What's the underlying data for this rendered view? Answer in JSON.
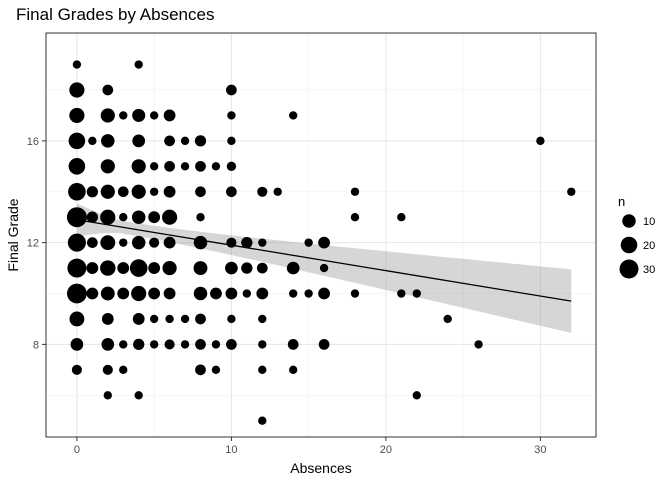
{
  "chart_data": {
    "type": "scatter",
    "title": "Final Grades by Absences",
    "xlabel": "Absences",
    "ylabel": "Final Grade",
    "xlim": [
      -2,
      33.6
    ],
    "ylim": [
      4.36,
      20.24
    ],
    "xticks": [
      0,
      10,
      20,
      30
    ],
    "yticks": [
      8,
      12,
      16
    ],
    "grid": true,
    "legend": {
      "title": "n",
      "position": "right",
      "entries": [
        10,
        20,
        30
      ]
    },
    "points": [
      {
        "x": 0,
        "y": 19,
        "n": 1
      },
      {
        "x": 4,
        "y": 19,
        "n": 1
      },
      {
        "x": 0,
        "y": 18,
        "n": 15
      },
      {
        "x": 2,
        "y": 18,
        "n": 4
      },
      {
        "x": 10,
        "y": 18,
        "n": 4
      },
      {
        "x": 0,
        "y": 17,
        "n": 15
      },
      {
        "x": 2,
        "y": 17,
        "n": 12
      },
      {
        "x": 3,
        "y": 17,
        "n": 1
      },
      {
        "x": 4,
        "y": 17,
        "n": 9
      },
      {
        "x": 5,
        "y": 17,
        "n": 1
      },
      {
        "x": 6,
        "y": 17,
        "n": 6
      },
      {
        "x": 10,
        "y": 17,
        "n": 1
      },
      {
        "x": 14,
        "y": 17,
        "n": 1
      },
      {
        "x": 0,
        "y": 16,
        "n": 20
      },
      {
        "x": 1,
        "y": 16,
        "n": 1
      },
      {
        "x": 2,
        "y": 16,
        "n": 10
      },
      {
        "x": 4,
        "y": 16,
        "n": 8
      },
      {
        "x": 6,
        "y": 16,
        "n": 4
      },
      {
        "x": 7,
        "y": 16,
        "n": 1
      },
      {
        "x": 8,
        "y": 16,
        "n": 5
      },
      {
        "x": 10,
        "y": 16,
        "n": 1
      },
      {
        "x": 30,
        "y": 16,
        "n": 1
      },
      {
        "x": 0,
        "y": 15,
        "n": 20
      },
      {
        "x": 2,
        "y": 15,
        "n": 12
      },
      {
        "x": 4,
        "y": 15,
        "n": 12
      },
      {
        "x": 5,
        "y": 15,
        "n": 1
      },
      {
        "x": 6,
        "y": 15,
        "n": 4
      },
      {
        "x": 7,
        "y": 15,
        "n": 1
      },
      {
        "x": 8,
        "y": 15,
        "n": 4
      },
      {
        "x": 9,
        "y": 15,
        "n": 1
      },
      {
        "x": 10,
        "y": 15,
        "n": 2
      },
      {
        "x": 0,
        "y": 14,
        "n": 24
      },
      {
        "x": 1,
        "y": 14,
        "n": 5
      },
      {
        "x": 2,
        "y": 14,
        "n": 12
      },
      {
        "x": 3,
        "y": 14,
        "n": 4
      },
      {
        "x": 4,
        "y": 14,
        "n": 12
      },
      {
        "x": 5,
        "y": 14,
        "n": 1
      },
      {
        "x": 6,
        "y": 14,
        "n": 6
      },
      {
        "x": 8,
        "y": 14,
        "n": 4
      },
      {
        "x": 10,
        "y": 14,
        "n": 4
      },
      {
        "x": 12,
        "y": 14,
        "n": 3
      },
      {
        "x": 13,
        "y": 14,
        "n": 1
      },
      {
        "x": 18,
        "y": 14,
        "n": 1
      },
      {
        "x": 32,
        "y": 14,
        "n": 1
      },
      {
        "x": 0,
        "y": 13,
        "n": 35
      },
      {
        "x": 1,
        "y": 13,
        "n": 5
      },
      {
        "x": 2,
        "y": 13,
        "n": 15
      },
      {
        "x": 3,
        "y": 13,
        "n": 1
      },
      {
        "x": 4,
        "y": 13,
        "n": 10
      },
      {
        "x": 5,
        "y": 13,
        "n": 6
      },
      {
        "x": 6,
        "y": 13,
        "n": 15
      },
      {
        "x": 8,
        "y": 13,
        "n": 1
      },
      {
        "x": 18,
        "y": 13,
        "n": 1
      },
      {
        "x": 21,
        "y": 13,
        "n": 1
      },
      {
        "x": 0,
        "y": 12,
        "n": 26
      },
      {
        "x": 1,
        "y": 12,
        "n": 4
      },
      {
        "x": 2,
        "y": 12,
        "n": 14
      },
      {
        "x": 3,
        "y": 12,
        "n": 1
      },
      {
        "x": 4,
        "y": 12,
        "n": 10
      },
      {
        "x": 5,
        "y": 12,
        "n": 3
      },
      {
        "x": 6,
        "y": 12,
        "n": 6
      },
      {
        "x": 8,
        "y": 12,
        "n": 10
      },
      {
        "x": 10,
        "y": 12,
        "n": 3
      },
      {
        "x": 11,
        "y": 12,
        "n": 5
      },
      {
        "x": 12,
        "y": 12,
        "n": 1
      },
      {
        "x": 15,
        "y": 12,
        "n": 1
      },
      {
        "x": 16,
        "y": 12,
        "n": 6
      },
      {
        "x": 0,
        "y": 11,
        "n": 30
      },
      {
        "x": 1,
        "y": 11,
        "n": 6
      },
      {
        "x": 2,
        "y": 11,
        "n": 16
      },
      {
        "x": 3,
        "y": 11,
        "n": 6
      },
      {
        "x": 4,
        "y": 11,
        "n": 24
      },
      {
        "x": 5,
        "y": 11,
        "n": 6
      },
      {
        "x": 6,
        "y": 11,
        "n": 12
      },
      {
        "x": 8,
        "y": 11,
        "n": 11
      },
      {
        "x": 10,
        "y": 11,
        "n": 8
      },
      {
        "x": 11,
        "y": 11,
        "n": 5
      },
      {
        "x": 12,
        "y": 11,
        "n": 4
      },
      {
        "x": 14,
        "y": 11,
        "n": 8
      },
      {
        "x": 16,
        "y": 11,
        "n": 1
      },
      {
        "x": 0,
        "y": 10,
        "n": 34
      },
      {
        "x": 1,
        "y": 10,
        "n": 6
      },
      {
        "x": 2,
        "y": 10,
        "n": 11
      },
      {
        "x": 3,
        "y": 10,
        "n": 6
      },
      {
        "x": 4,
        "y": 10,
        "n": 15
      },
      {
        "x": 5,
        "y": 10,
        "n": 6
      },
      {
        "x": 6,
        "y": 10,
        "n": 6
      },
      {
        "x": 8,
        "y": 10,
        "n": 10
      },
      {
        "x": 9,
        "y": 10,
        "n": 6
      },
      {
        "x": 10,
        "y": 10,
        "n": 6
      },
      {
        "x": 11,
        "y": 10,
        "n": 1
      },
      {
        "x": 12,
        "y": 10,
        "n": 6
      },
      {
        "x": 14,
        "y": 10,
        "n": 1
      },
      {
        "x": 15,
        "y": 10,
        "n": 1
      },
      {
        "x": 16,
        "y": 10,
        "n": 6
      },
      {
        "x": 18,
        "y": 10,
        "n": 1
      },
      {
        "x": 21,
        "y": 10,
        "n": 1
      },
      {
        "x": 22,
        "y": 10,
        "n": 1
      },
      {
        "x": 0,
        "y": 9,
        "n": 14
      },
      {
        "x": 2,
        "y": 9,
        "n": 6
      },
      {
        "x": 4,
        "y": 9,
        "n": 6
      },
      {
        "x": 5,
        "y": 9,
        "n": 1
      },
      {
        "x": 6,
        "y": 9,
        "n": 1
      },
      {
        "x": 7,
        "y": 9,
        "n": 1
      },
      {
        "x": 8,
        "y": 9,
        "n": 4
      },
      {
        "x": 10,
        "y": 9,
        "n": 1
      },
      {
        "x": 12,
        "y": 9,
        "n": 1
      },
      {
        "x": 24,
        "y": 9,
        "n": 1
      },
      {
        "x": 0,
        "y": 8,
        "n": 8
      },
      {
        "x": 2,
        "y": 8,
        "n": 8
      },
      {
        "x": 3,
        "y": 8,
        "n": 1
      },
      {
        "x": 4,
        "y": 8,
        "n": 5
      },
      {
        "x": 5,
        "y": 8,
        "n": 1
      },
      {
        "x": 6,
        "y": 8,
        "n": 3
      },
      {
        "x": 7,
        "y": 8,
        "n": 1
      },
      {
        "x": 8,
        "y": 8,
        "n": 4
      },
      {
        "x": 9,
        "y": 8,
        "n": 1
      },
      {
        "x": 10,
        "y": 8,
        "n": 4
      },
      {
        "x": 12,
        "y": 8,
        "n": 1
      },
      {
        "x": 14,
        "y": 8,
        "n": 4
      },
      {
        "x": 16,
        "y": 8,
        "n": 4
      },
      {
        "x": 26,
        "y": 8,
        "n": 1
      },
      {
        "x": 0,
        "y": 7,
        "n": 3
      },
      {
        "x": 2,
        "y": 7,
        "n": 3
      },
      {
        "x": 3,
        "y": 7,
        "n": 1
      },
      {
        "x": 8,
        "y": 7,
        "n": 4
      },
      {
        "x": 9,
        "y": 7,
        "n": 1
      },
      {
        "x": 12,
        "y": 7,
        "n": 1
      },
      {
        "x": 14,
        "y": 7,
        "n": 1
      },
      {
        "x": 2,
        "y": 6,
        "n": 1
      },
      {
        "x": 4,
        "y": 6,
        "n": 1
      },
      {
        "x": 22,
        "y": 6,
        "n": 1
      },
      {
        "x": 12,
        "y": 5,
        "n": 1
      }
    ],
    "trend": {
      "type": "linear",
      "x": [
        0,
        32
      ],
      "y": [
        12.9,
        9.7
      ],
      "ci_lower": [
        12.25,
        8.45
      ],
      "ci_upper": [
        13.55,
        10.95
      ],
      "ci_min_x": 3,
      "ci_min_halfwidth": 0.25
    }
  }
}
